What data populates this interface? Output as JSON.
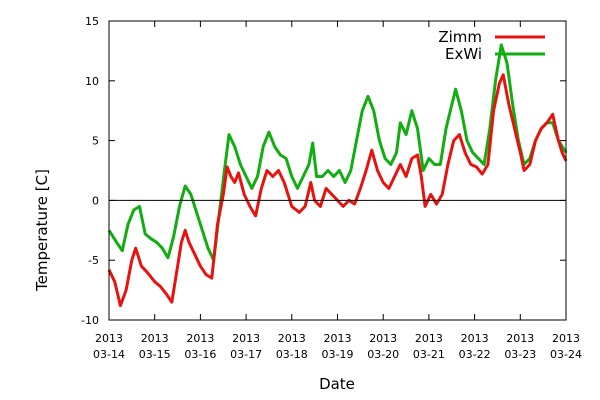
{
  "chart_data": {
    "type": "line",
    "title": "",
    "xlabel": "Date",
    "ylabel": "Temperature [C]",
    "xlim": [
      "2013-03-14",
      "2013-03-24"
    ],
    "ylim": [
      -10,
      15
    ],
    "x_ticks": [
      {
        "year": "2013",
        "date": "03-14"
      },
      {
        "year": "2013",
        "date": "03-15"
      },
      {
        "year": "2013",
        "date": "03-16"
      },
      {
        "year": "2013",
        "date": "03-17"
      },
      {
        "year": "2013",
        "date": "03-18"
      },
      {
        "year": "2013",
        "date": "03-19"
      },
      {
        "year": "2013",
        "date": "03-20"
      },
      {
        "year": "2013",
        "date": "03-21"
      },
      {
        "year": "2013",
        "date": "03-22"
      },
      {
        "year": "2013",
        "date": "03-23"
      },
      {
        "year": "2013",
        "date": "03-24"
      }
    ],
    "y_ticks": [
      -10,
      -5,
      0,
      5,
      10,
      15
    ],
    "zero_line": true,
    "grid": false,
    "legend": "top-right",
    "series": [
      {
        "name": "Zimm",
        "color": "#e8130f",
        "points": [
          [
            "2013-03-14 00:00",
            -5.8
          ],
          [
            "2013-03-14 03:00",
            -6.8
          ],
          [
            "2013-03-14 06:00",
            -8.8
          ],
          [
            "2013-03-14 09:00",
            -7.5
          ],
          [
            "2013-03-14 12:00",
            -5.0
          ],
          [
            "2013-03-14 14:00",
            -4.0
          ],
          [
            "2013-03-14 17:00",
            -5.5
          ],
          [
            "2013-03-14 20:00",
            -6.0
          ],
          [
            "2013-03-15 00:00",
            -6.8
          ],
          [
            "2013-03-15 03:00",
            -7.2
          ],
          [
            "2013-03-15 06:00",
            -7.8
          ],
          [
            "2013-03-15 09:00",
            -8.5
          ],
          [
            "2013-03-15 12:00",
            -5.5
          ],
          [
            "2013-03-15 14:00",
            -3.5
          ],
          [
            "2013-03-15 16:00",
            -2.5
          ],
          [
            "2013-03-15 18:00",
            -3.5
          ],
          [
            "2013-03-15 21:00",
            -4.5
          ],
          [
            "2013-03-16 00:00",
            -5.5
          ],
          [
            "2013-03-16 03:00",
            -6.2
          ],
          [
            "2013-03-16 06:00",
            -6.5
          ],
          [
            "2013-03-16 09:00",
            -2.0
          ],
          [
            "2013-03-16 12:00",
            0.5
          ],
          [
            "2013-03-16 14:00",
            2.8
          ],
          [
            "2013-03-16 16:00",
            2.0
          ],
          [
            "2013-03-16 18:00",
            1.5
          ],
          [
            "2013-03-16 20:00",
            2.3
          ],
          [
            "2013-03-16 23:00",
            0.5
          ],
          [
            "2013-03-17 02:00",
            -0.5
          ],
          [
            "2013-03-17 05:00",
            -1.3
          ],
          [
            "2013-03-17 08:00",
            1.0
          ],
          [
            "2013-03-17 11:00",
            2.5
          ],
          [
            "2013-03-17 14:00",
            2.0
          ],
          [
            "2013-03-17 17:00",
            2.5
          ],
          [
            "2013-03-17 20:00",
            1.5
          ],
          [
            "2013-03-18 00:00",
            -0.5
          ],
          [
            "2013-03-18 04:00",
            -1.0
          ],
          [
            "2013-03-18 07:00",
            -0.5
          ],
          [
            "2013-03-18 10:00",
            1.5
          ],
          [
            "2013-03-18 12:00",
            0.0
          ],
          [
            "2013-03-18 15:00",
            -0.5
          ],
          [
            "2013-03-18 18:00",
            1.0
          ],
          [
            "2013-03-18 21:00",
            0.5
          ],
          [
            "2013-03-19 00:00",
            0.0
          ],
          [
            "2013-03-19 03:00",
            -0.5
          ],
          [
            "2013-03-19 06:00",
            0.0
          ],
          [
            "2013-03-19 09:00",
            -0.3
          ],
          [
            "2013-03-19 12:00",
            1.0
          ],
          [
            "2013-03-19 15:00",
            2.5
          ],
          [
            "2013-03-19 18:00",
            4.2
          ],
          [
            "2013-03-19 21:00",
            2.5
          ],
          [
            "2013-03-20 00:00",
            1.5
          ],
          [
            "2013-03-20 03:00",
            1.0
          ],
          [
            "2013-03-20 06:00",
            2.0
          ],
          [
            "2013-03-20 09:00",
            3.0
          ],
          [
            "2013-03-20 12:00",
            2.0
          ],
          [
            "2013-03-20 15:00",
            3.5
          ],
          [
            "2013-03-20 18:00",
            3.8
          ],
          [
            "2013-03-20 20:00",
            2.0
          ],
          [
            "2013-03-20 22:00",
            -0.5
          ],
          [
            "2013-03-21 01:00",
            0.5
          ],
          [
            "2013-03-21 04:00",
            -0.3
          ],
          [
            "2013-03-21 07:00",
            0.5
          ],
          [
            "2013-03-21 10:00",
            3.0
          ],
          [
            "2013-03-21 13:00",
            5.0
          ],
          [
            "2013-03-21 16:00",
            5.5
          ],
          [
            "2013-03-21 19:00",
            4.0
          ],
          [
            "2013-03-21 22:00",
            3.0
          ],
          [
            "2013-03-22 01:00",
            2.8
          ],
          [
            "2013-03-22 04:00",
            2.2
          ],
          [
            "2013-03-22 07:00",
            3.0
          ],
          [
            "2013-03-22 10:00",
            7.5
          ],
          [
            "2013-03-22 13:00",
            9.8
          ],
          [
            "2013-03-22 15:00",
            10.5
          ],
          [
            "2013-03-22 18:00",
            8.0
          ],
          [
            "2013-03-22 21:00",
            6.0
          ],
          [
            "2013-03-23 00:00",
            4.0
          ],
          [
            "2013-03-23 02:00",
            2.5
          ],
          [
            "2013-03-23 05:00",
            3.0
          ],
          [
            "2013-03-23 08:00",
            5.0
          ],
          [
            "2013-03-23 11:00",
            6.0
          ],
          [
            "2013-03-23 14:00",
            6.5
          ],
          [
            "2013-03-23 17:00",
            7.2
          ],
          [
            "2013-03-23 20:00",
            5.0
          ],
          [
            "2013-03-23 22:00",
            4.0
          ],
          [
            "2013-03-24 00:00",
            3.3
          ]
        ]
      },
      {
        "name": "ExWi",
        "color": "#11ad11",
        "points": [
          [
            "2013-03-14 00:00",
            -2.5
          ],
          [
            "2013-03-14 04:00",
            -3.5
          ],
          [
            "2013-03-14 07:00",
            -4.2
          ],
          [
            "2013-03-14 10:00",
            -2.0
          ],
          [
            "2013-03-14 13:00",
            -0.8
          ],
          [
            "2013-03-14 16:00",
            -0.5
          ],
          [
            "2013-03-14 19:00",
            -2.8
          ],
          [
            "2013-03-14 22:00",
            -3.2
          ],
          [
            "2013-03-15 01:00",
            -3.5
          ],
          [
            "2013-03-15 04:00",
            -4.0
          ],
          [
            "2013-03-15 07:00",
            -4.8
          ],
          [
            "2013-03-15 10:00",
            -3.0
          ],
          [
            "2013-03-15 13:00",
            -0.5
          ],
          [
            "2013-03-15 16:00",
            1.2
          ],
          [
            "2013-03-15 19:00",
            0.5
          ],
          [
            "2013-03-15 22:00",
            -1.0
          ],
          [
            "2013-03-16 01:00",
            -2.5
          ],
          [
            "2013-03-16 04:00",
            -4.0
          ],
          [
            "2013-03-16 07:00",
            -5.0
          ],
          [
            "2013-03-16 10:00",
            -1.0
          ],
          [
            "2013-03-16 13:00",
            3.0
          ],
          [
            "2013-03-16 15:00",
            5.5
          ],
          [
            "2013-03-16 18:00",
            4.5
          ],
          [
            "2013-03-16 21:00",
            3.0
          ],
          [
            "2013-03-17 00:00",
            2.0
          ],
          [
            "2013-03-17 03:00",
            1.0
          ],
          [
            "2013-03-17 06:00",
            2.0
          ],
          [
            "2013-03-17 09:00",
            4.5
          ],
          [
            "2013-03-17 12:00",
            5.7
          ],
          [
            "2013-03-17 15:00",
            4.5
          ],
          [
            "2013-03-17 18:00",
            3.8
          ],
          [
            "2013-03-17 21:00",
            3.5
          ],
          [
            "2013-03-18 00:00",
            2.0
          ],
          [
            "2013-03-18 03:00",
            1.0
          ],
          [
            "2013-03-18 06:00",
            2.0
          ],
          [
            "2013-03-18 09:00",
            3.0
          ],
          [
            "2013-03-18 11:00",
            4.8
          ],
          [
            "2013-03-18 13:00",
            2.0
          ],
          [
            "2013-03-18 16:00",
            2.0
          ],
          [
            "2013-03-18 19:00",
            2.5
          ],
          [
            "2013-03-18 22:00",
            2.0
          ],
          [
            "2013-03-19 01:00",
            2.5
          ],
          [
            "2013-03-19 04:00",
            1.5
          ],
          [
            "2013-03-19 07:00",
            2.5
          ],
          [
            "2013-03-19 10:00",
            5.0
          ],
          [
            "2013-03-19 13:00",
            7.5
          ],
          [
            "2013-03-19 16:00",
            8.7
          ],
          [
            "2013-03-19 19:00",
            7.5
          ],
          [
            "2013-03-19 22:00",
            5.0
          ],
          [
            "2013-03-20 01:00",
            3.5
          ],
          [
            "2013-03-20 04:00",
            3.0
          ],
          [
            "2013-03-20 07:00",
            4.0
          ],
          [
            "2013-03-20 09:00",
            6.5
          ],
          [
            "2013-03-20 12:00",
            5.5
          ],
          [
            "2013-03-20 15:00",
            7.5
          ],
          [
            "2013-03-20 18:00",
            6.0
          ],
          [
            "2013-03-20 21:00",
            2.5
          ],
          [
            "2013-03-21 00:00",
            3.5
          ],
          [
            "2013-03-21 03:00",
            3.0
          ],
          [
            "2013-03-21 06:00",
            3.0
          ],
          [
            "2013-03-21 09:00",
            6.0
          ],
          [
            "2013-03-21 12:00",
            8.0
          ],
          [
            "2013-03-21 14:00",
            9.3
          ],
          [
            "2013-03-21 17:00",
            7.5
          ],
          [
            "2013-03-21 20:00",
            5.0
          ],
          [
            "2013-03-21 23:00",
            4.0
          ],
          [
            "2013-03-22 02:00",
            3.5
          ],
          [
            "2013-03-22 05:00",
            3.0
          ],
          [
            "2013-03-22 08:00",
            6.0
          ],
          [
            "2013-03-22 11:00",
            10.0
          ],
          [
            "2013-03-22 14:00",
            13.0
          ],
          [
            "2013-03-22 17:00",
            11.5
          ],
          [
            "2013-03-22 20:00",
            8.0
          ],
          [
            "2013-03-22 23:00",
            5.0
          ],
          [
            "2013-03-23 02:00",
            3.0
          ],
          [
            "2013-03-23 05:00",
            3.5
          ],
          [
            "2013-03-23 08:00",
            5.0
          ],
          [
            "2013-03-23 11:00",
            6.0
          ],
          [
            "2013-03-23 14:00",
            6.5
          ],
          [
            "2013-03-23 17:00",
            6.5
          ],
          [
            "2013-03-23 20:00",
            5.0
          ],
          [
            "2013-03-24 00:00",
            4.0
          ]
        ]
      }
    ]
  }
}
